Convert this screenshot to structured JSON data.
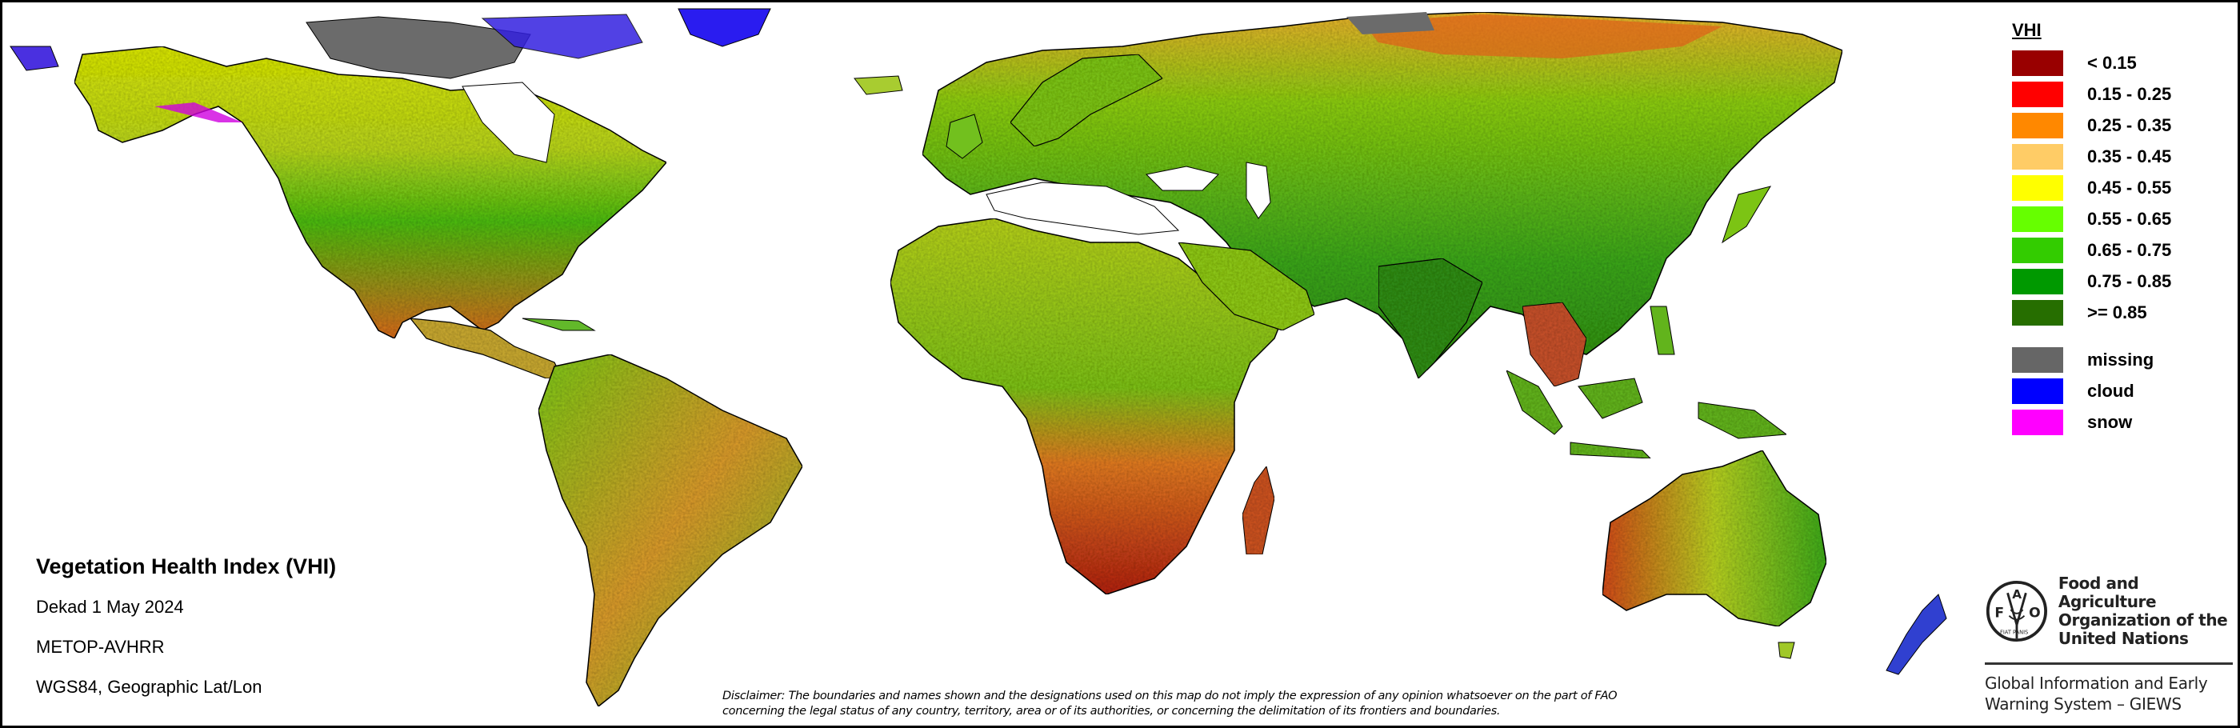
{
  "map": {
    "title": "Vegetation Health Index (VHI)",
    "period": "Dekad 1 May 2024",
    "sensor": "METOP-AVHRR",
    "projection": "WGS84, Geographic Lat/Lon"
  },
  "legend": {
    "title": "VHI",
    "classes": [
      {
        "label": "< 0.15",
        "color": "#990000"
      },
      {
        "label": "0.15 - 0.25",
        "color": "#ff0000"
      },
      {
        "label": "0.25 - 0.35",
        "color": "#ff8800"
      },
      {
        "label": "0.35 - 0.45",
        "color": "#ffcc66"
      },
      {
        "label": "0.45 - 0.55",
        "color": "#ffff00"
      },
      {
        "label": "0.55 - 0.65",
        "color": "#66ff00"
      },
      {
        "label": "0.65 - 0.75",
        "color": "#33cc00"
      },
      {
        "label": "0.75 - 0.85",
        "color": "#009900"
      },
      {
        "label": ">= 0.85",
        "color": "#266e00"
      }
    ],
    "special": [
      {
        "label": "missing",
        "color": "#666666"
      },
      {
        "label": "cloud",
        "color": "#0000ff"
      },
      {
        "label": "snow",
        "color": "#ff00ff"
      }
    ]
  },
  "disclaimer": {
    "line1": "Disclaimer: The boundaries and names shown and the designations used on this map do not imply the expression of any opinion whatsoever on the part of FAO",
    "line2": "concerning the legal status of any country, territory, area or of its authorities, or concerning the delimitation of its frontiers and boundaries."
  },
  "organization": {
    "logo_letters": {
      "f": "F",
      "a": "A",
      "o": "O",
      "motto": "FIAT PANIS"
    },
    "name_line1": "Food and Agriculture",
    "name_line2": "Organization of the",
    "name_line3": "United Nations",
    "system_line1": "Global Information and Early",
    "system_line2": "Warning System – GIEWS"
  }
}
